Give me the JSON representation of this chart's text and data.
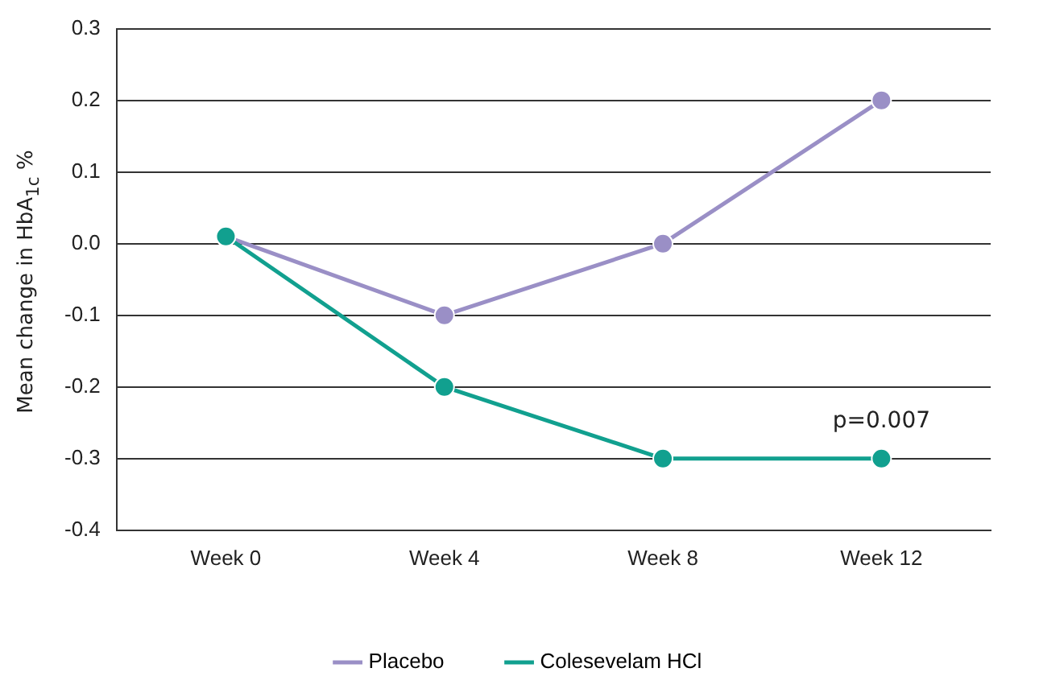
{
  "chart_data": {
    "type": "line",
    "ylabel": "Mean change in HbA$_{1c}$ %",
    "categories": [
      "Week 0",
      "Week 4",
      "Week 8",
      "Week 12"
    ],
    "series": [
      {
        "name": "Placebo",
        "color": "#9a8fc6",
        "values": [
          0.01,
          -0.1,
          0,
          0.2
        ]
      },
      {
        "name": "Colesevelam HCl",
        "color": "#11a08f",
        "values": [
          0.01,
          -0.2,
          -0.3,
          -0.3
        ]
      }
    ],
    "ylim": [
      -0.4,
      0.3
    ],
    "yticks": [
      0.3,
      0.2,
      0.1,
      {
        "value": 0,
        "label": "0.0"
      },
      -0.1,
      -0.2,
      -0.3,
      -0.4
    ],
    "annotations": [
      {
        "text": "p=0.007",
        "x": "Week 12",
        "y": -0.3
      }
    ],
    "grid": "y",
    "legend": "bottom",
    "marker": "circle",
    "line_style": "solid"
  }
}
